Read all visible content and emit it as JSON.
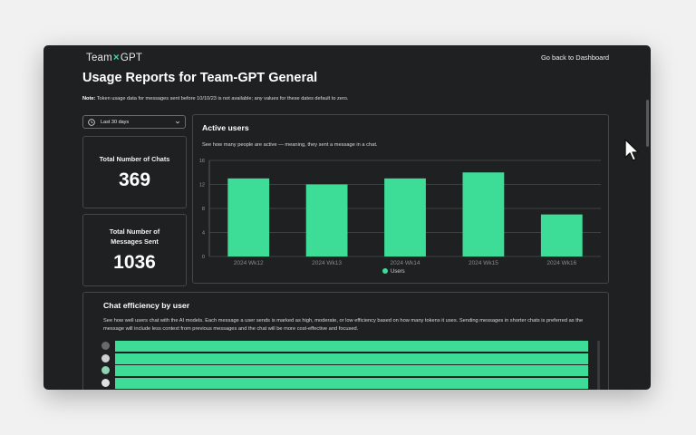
{
  "brand": {
    "left": "Team",
    "sep": "×",
    "right": "GPT"
  },
  "nav": {
    "back_label": "Go back to Dashboard"
  },
  "page": {
    "title": "Usage Reports for Team-GPT General"
  },
  "note": {
    "label": "Note:",
    "text": "Token usage data for messages sent before 10/10/23 is not available; any values for these dates default to zero."
  },
  "filter": {
    "date_range": "Last 30 days"
  },
  "stats": {
    "chats": {
      "label": "Total Number of Chats",
      "value": "369"
    },
    "messages": {
      "label_line1": "Total Number of",
      "label_line2": "Messages Sent",
      "value": "1036"
    }
  },
  "active_users": {
    "title": "Active users",
    "description": "See how many people are active — meaning, they sent a message in a chat."
  },
  "chart_data": {
    "type": "bar",
    "title": "Active users",
    "categories": [
      "2024 Wk12",
      "2024 Wk13",
      "2024 Wk14",
      "2024 Wk15",
      "2024 Wk16"
    ],
    "series": [
      {
        "name": "Users",
        "values": [
          13,
          12,
          13,
          14,
          7
        ],
        "color": "#3ddc97"
      }
    ],
    "yticks": [
      0,
      4,
      8,
      12,
      16
    ],
    "ylim": [
      0,
      16
    ],
    "grid": true,
    "legend": "bottom"
  },
  "efficiency": {
    "title": "Chat efficiency by user",
    "description": "See how well users chat with the AI models. Each message a user sends is marked as high, moderate, or low efficiency based on how many tokens it uses. Sending messages in shorter chats is preferred as the message will include less context from previous messages and the chat will be more cost-effective and focused.",
    "bar_color": "#3ddc97",
    "rows": [
      {
        "icon": "user-avatar-icon"
      },
      {
        "icon": "user-avatar-icon"
      },
      {
        "icon": "user-avatar-icon"
      },
      {
        "icon": "user-avatar-icon"
      }
    ]
  },
  "colors": {
    "accent": "#3ddc97",
    "background": "#1f2021",
    "border": "#474747"
  }
}
